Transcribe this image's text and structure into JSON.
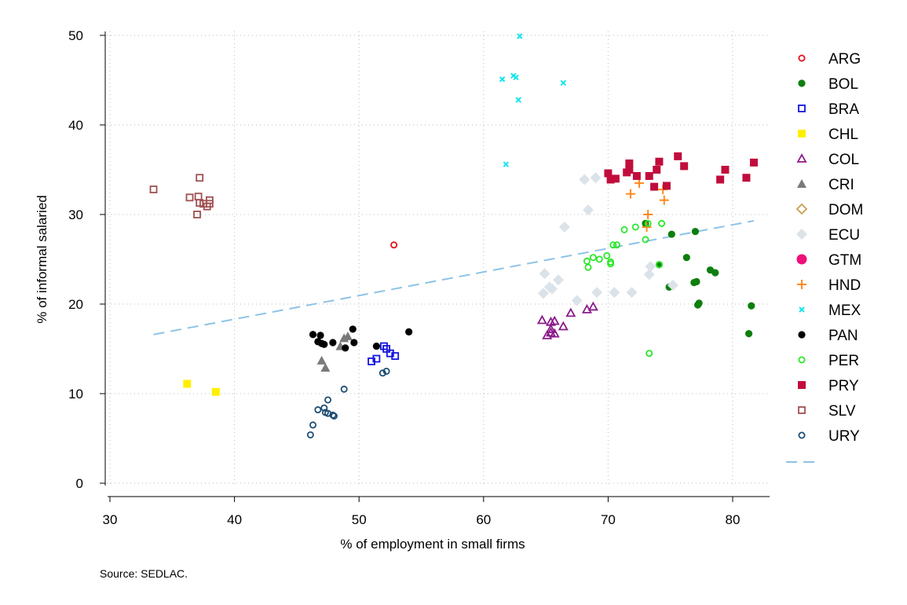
{
  "chart_data": {
    "type": "scatter",
    "title": "",
    "xlabel": "% of employment in small firms",
    "ylabel": "% of informal salaried",
    "xlim": [
      30,
      83
    ],
    "ylim": [
      0,
      50
    ],
    "x_ticks": [
      "30",
      "40",
      "50",
      "60",
      "70",
      "80"
    ],
    "y_ticks": [
      "0",
      "10",
      "20",
      "30",
      "40",
      "50"
    ],
    "grid": true,
    "legend_position": "right",
    "note": "Source: SEDLAC.",
    "fit_line": {
      "style": "dashed",
      "color": "#8ec3e6",
      "x": [
        33.5,
        81.7
      ],
      "y": [
        16.6,
        29.3
      ]
    },
    "series": [
      {
        "name": "ARG",
        "color": "#e8101a",
        "marker": "circle-open",
        "points": [
          [
            52.8,
            26.6
          ]
        ]
      },
      {
        "name": "BOL",
        "color": "#0d7f0d",
        "marker": "circle",
        "points": [
          [
            74.1,
            24.4
          ],
          [
            73.0,
            29.0
          ],
          [
            75.1,
            27.8
          ],
          [
            77.0,
            28.1
          ],
          [
            76.3,
            25.2
          ],
          [
            77.1,
            22.5
          ],
          [
            76.9,
            22.4
          ],
          [
            78.2,
            23.8
          ],
          [
            78.6,
            23.5
          ],
          [
            77.3,
            20.1
          ],
          [
            77.2,
            19.9
          ],
          [
            81.5,
            19.8
          ],
          [
            81.3,
            16.7
          ],
          [
            74.9,
            21.9
          ]
        ]
      },
      {
        "name": "BRA",
        "color": "#1414e0",
        "marker": "square-open",
        "points": [
          [
            52.0,
            15.3
          ],
          [
            52.2,
            15.0
          ],
          [
            52.5,
            14.5
          ],
          [
            52.9,
            14.2
          ],
          [
            51.4,
            13.9
          ],
          [
            51.0,
            13.6
          ]
        ]
      },
      {
        "name": "CHL",
        "color": "#ffef00",
        "marker": "square",
        "points": [
          [
            36.2,
            11.1
          ],
          [
            38.5,
            10.2
          ]
        ]
      },
      {
        "name": "COL",
        "color": "#8b1a8b",
        "marker": "triangle-open",
        "points": [
          [
            64.7,
            18.2
          ],
          [
            65.4,
            18.0
          ],
          [
            65.7,
            18.1
          ],
          [
            65.1,
            16.5
          ],
          [
            65.4,
            16.8
          ],
          [
            65.7,
            16.7
          ],
          [
            65.4,
            17.2
          ],
          [
            66.4,
            17.5
          ],
          [
            67.0,
            19.0
          ],
          [
            68.3,
            19.4
          ],
          [
            68.8,
            19.7
          ]
        ]
      },
      {
        "name": "CRI",
        "color": "#7a7a7a",
        "marker": "triangle",
        "points": [
          [
            47.0,
            13.7
          ],
          [
            47.3,
            12.9
          ],
          [
            48.5,
            15.3
          ],
          [
            48.8,
            16.2
          ],
          [
            49.1,
            16.4
          ]
        ]
      },
      {
        "name": "DOM",
        "color": "#c8a050",
        "marker": "diamond-open",
        "points": []
      },
      {
        "name": "ECU",
        "color": "#dbe3ea",
        "marker": "diamond",
        "points": [
          [
            68.1,
            33.9
          ],
          [
            69.0,
            34.1
          ],
          [
            68.4,
            30.5
          ],
          [
            66.5,
            28.6
          ],
          [
            64.9,
            23.4
          ],
          [
            65.3,
            21.9
          ],
          [
            65.5,
            21.7
          ],
          [
            66.0,
            22.7
          ],
          [
            64.8,
            21.2
          ],
          [
            67.5,
            20.4
          ],
          [
            69.1,
            21.3
          ],
          [
            70.5,
            21.3
          ],
          [
            71.9,
            21.3
          ],
          [
            73.4,
            24.2
          ],
          [
            73.3,
            23.3
          ],
          [
            75.2,
            22.1
          ]
        ]
      },
      {
        "name": "GTM",
        "color": "#ef0f7a",
        "marker": "circle-big",
        "points": []
      },
      {
        "name": "HND",
        "color": "#ff8a1d",
        "marker": "plus",
        "points": [
          [
            71.8,
            32.3
          ],
          [
            72.5,
            33.5
          ],
          [
            73.2,
            30.0
          ],
          [
            73.1,
            28.6
          ],
          [
            74.4,
            32.8
          ],
          [
            74.5,
            31.6
          ]
        ]
      },
      {
        "name": "MEX",
        "color": "#13e5ec",
        "marker": "x",
        "points": [
          [
            62.9,
            49.9
          ],
          [
            61.5,
            45.1
          ],
          [
            62.4,
            45.5
          ],
          [
            62.6,
            45.3
          ],
          [
            66.4,
            44.7
          ],
          [
            62.8,
            42.8
          ],
          [
            61.8,
            35.6
          ]
        ]
      },
      {
        "name": "PAN",
        "color": "#000000",
        "marker": "circle",
        "points": [
          [
            46.3,
            16.6
          ],
          [
            46.9,
            16.5
          ],
          [
            46.7,
            15.8
          ],
          [
            47.0,
            15.6
          ],
          [
            47.2,
            15.5
          ],
          [
            47.9,
            15.7
          ],
          [
            48.9,
            15.1
          ],
          [
            49.5,
            17.2
          ],
          [
            49.6,
            15.7
          ],
          [
            51.4,
            15.3
          ],
          [
            54.0,
            16.9
          ]
        ]
      },
      {
        "name": "PER",
        "color": "#28e828",
        "marker": "circle-open",
        "points": [
          [
            72.2,
            28.6
          ],
          [
            71.3,
            28.3
          ],
          [
            73.2,
            29.0
          ],
          [
            74.3,
            29.0
          ],
          [
            73.0,
            27.2
          ],
          [
            70.4,
            26.6
          ],
          [
            70.7,
            26.6
          ],
          [
            69.9,
            25.4
          ],
          [
            68.8,
            25.2
          ],
          [
            69.3,
            25.0
          ],
          [
            68.3,
            24.8
          ],
          [
            70.2,
            24.7
          ],
          [
            70.2,
            24.5
          ],
          [
            68.4,
            24.1
          ],
          [
            74.1,
            24.4
          ],
          [
            73.3,
            14.5
          ]
        ]
      },
      {
        "name": "PRY",
        "color": "#c10d3c",
        "marker": "square",
        "points": [
          [
            70.0,
            34.6
          ],
          [
            70.2,
            33.9
          ],
          [
            70.6,
            34.0
          ],
          [
            71.5,
            34.7
          ],
          [
            71.7,
            35.7
          ],
          [
            71.7,
            35.0
          ],
          [
            72.3,
            34.3
          ],
          [
            73.3,
            34.3
          ],
          [
            73.7,
            33.1
          ],
          [
            73.9,
            35.0
          ],
          [
            74.1,
            35.9
          ],
          [
            74.7,
            33.2
          ],
          [
            75.6,
            36.5
          ],
          [
            76.1,
            35.4
          ],
          [
            79.0,
            33.9
          ],
          [
            79.4,
            35.0
          ],
          [
            81.1,
            34.1
          ],
          [
            81.7,
            35.8
          ]
        ]
      },
      {
        "name": "SLV",
        "color": "#a05050",
        "marker": "square-open",
        "points": [
          [
            33.5,
            32.8
          ],
          [
            37.2,
            34.1
          ],
          [
            36.4,
            31.9
          ],
          [
            37.1,
            32.0
          ],
          [
            37.2,
            31.3
          ],
          [
            37.5,
            31.2
          ],
          [
            37.8,
            30.9
          ],
          [
            38.0,
            31.6
          ],
          [
            38.0,
            31.2
          ],
          [
            37.0,
            30.0
          ]
        ]
      },
      {
        "name": "URY",
        "color": "#1e4d72",
        "marker": "circle-open",
        "points": [
          [
            48.8,
            10.5
          ],
          [
            47.5,
            9.3
          ],
          [
            46.7,
            8.2
          ],
          [
            47.2,
            8.4
          ],
          [
            47.3,
            7.9
          ],
          [
            47.5,
            7.8
          ],
          [
            47.9,
            7.6
          ],
          [
            48.0,
            7.5
          ],
          [
            46.3,
            6.5
          ],
          [
            46.1,
            5.4
          ],
          [
            51.9,
            12.3
          ],
          [
            52.2,
            12.5
          ]
        ]
      }
    ]
  }
}
